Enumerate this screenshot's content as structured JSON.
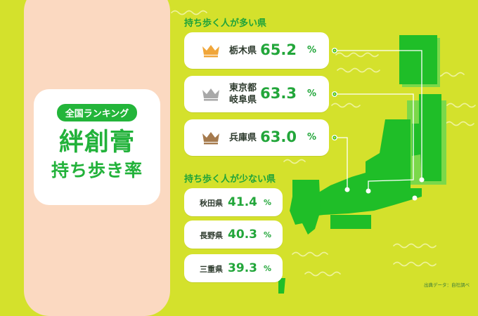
{
  "badge": {
    "tag": "全国ランキング",
    "title": "絆創膏",
    "subtitle": "持ち歩き率"
  },
  "most_heading": "持ち歩く人が多い県",
  "least_heading": "持ち歩く人が少ない県",
  "unit": "%",
  "most": [
    {
      "pref": "栃木県",
      "value": "65.2",
      "crown": "gold-crown-icon",
      "color": "#f0a63a"
    },
    {
      "pref_lines": [
        "東京都",
        "岐阜県"
      ],
      "value": "63.3",
      "crown": "silver-crown-icon",
      "color": "#a8a8a8"
    },
    {
      "pref": "兵庫県",
      "value": "63.0",
      "crown": "bronze-crown-icon",
      "color": "#a57a4d"
    }
  ],
  "least": [
    {
      "pref": "秋田県",
      "value": "41.4"
    },
    {
      "pref": "長野県",
      "value": "40.3"
    },
    {
      "pref": "三重県",
      "value": "39.3"
    }
  ],
  "source": "出典データ：自社調べ",
  "colors": {
    "background": "#d4e12c",
    "panel": "#fbd9c1",
    "green": "#22b23a",
    "map": "#1fbe28"
  },
  "chart_data": {
    "type": "table",
    "title": "絆創膏 持ち歩き率",
    "groups": [
      {
        "name": "持ち歩く人が多い県",
        "rows": [
          {
            "label": "栃木県",
            "value": 65.2
          },
          {
            "label": "東京都",
            "value": 63.3
          },
          {
            "label": "岐阜県",
            "value": 63.3
          },
          {
            "label": "兵庫県",
            "value": 63.0
          }
        ]
      },
      {
        "name": "持ち歩く人が少ない県",
        "rows": [
          {
            "label": "秋田県",
            "value": 41.4
          },
          {
            "label": "長野県",
            "value": 40.3
          },
          {
            "label": "三重県",
            "value": 39.3
          }
        ]
      }
    ],
    "unit": "%"
  }
}
